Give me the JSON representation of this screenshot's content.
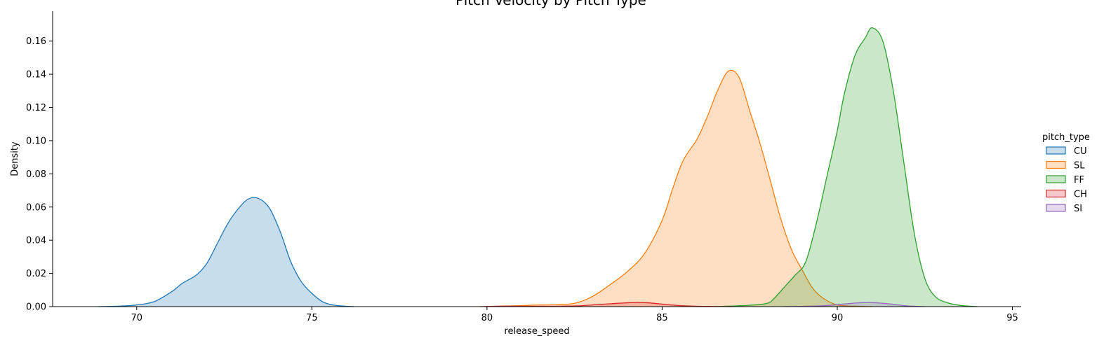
{
  "chart_data": {
    "type": "area",
    "title": "Pitch Velocity by Pitch Type",
    "xlabel": "release_speed",
    "ylabel": "Density",
    "xlim": [
      67.6,
      95.25
    ],
    "ylim": [
      0,
      0.178
    ],
    "x_ticks": [
      70,
      75,
      80,
      85,
      90,
      95
    ],
    "x_tick_labels": [
      "70",
      "75",
      "80",
      "85",
      "90",
      "95"
    ],
    "y_ticks": [
      0,
      0.02,
      0.04,
      0.06,
      0.08,
      0.1,
      0.12,
      0.14,
      0.16
    ],
    "y_tick_labels": [
      "0.00",
      "0.02",
      "0.04",
      "0.06",
      "0.08",
      "0.10",
      "0.12",
      "0.14",
      "0.16"
    ],
    "grid": false,
    "legend": {
      "title": "pitch_type",
      "position": "right"
    },
    "series": [
      {
        "name": "CU",
        "color": "#1f77b4",
        "x": [
          68.9,
          69.5,
          70.0,
          70.5,
          71.0,
          71.3,
          71.7,
          72.0,
          72.3,
          72.6,
          72.9,
          73.2,
          73.5,
          73.8,
          74.1,
          74.4,
          74.7,
          75.0,
          75.3,
          75.6,
          76.0,
          76.2
        ],
        "y": [
          0.0,
          0.0003,
          0.001,
          0.003,
          0.009,
          0.014,
          0.019,
          0.026,
          0.038,
          0.05,
          0.059,
          0.065,
          0.065,
          0.059,
          0.045,
          0.027,
          0.015,
          0.008,
          0.003,
          0.001,
          0.0002,
          0.0
        ]
      },
      {
        "name": "SL",
        "color": "#ff7f0e",
        "x": [
          80.0,
          80.5,
          81.0,
          81.5,
          82.0,
          82.5,
          83.0,
          83.5,
          84.0,
          84.5,
          85.0,
          85.3,
          85.6,
          86.0,
          86.3,
          86.6,
          86.9,
          87.2,
          87.5,
          87.8,
          88.1,
          88.4,
          88.7,
          89.0,
          89.3,
          89.6,
          90.0,
          90.5,
          91.0
        ],
        "y": [
          0.0,
          0.0003,
          0.0006,
          0.001,
          0.0012,
          0.002,
          0.006,
          0.013,
          0.021,
          0.032,
          0.052,
          0.071,
          0.088,
          0.101,
          0.115,
          0.131,
          0.142,
          0.138,
          0.118,
          0.098,
          0.075,
          0.052,
          0.034,
          0.022,
          0.011,
          0.005,
          0.001,
          0.0003,
          0.0
        ]
      },
      {
        "name": "FF",
        "color": "#2ca02c",
        "x": [
          86.5,
          87.5,
          88.0,
          88.2,
          88.5,
          88.8,
          89.1,
          89.4,
          89.7,
          90.0,
          90.2,
          90.5,
          90.8,
          91.0,
          91.3,
          91.6,
          91.9,
          92.2,
          92.5,
          92.8,
          93.2,
          93.6,
          94.0
        ],
        "y": [
          0.0,
          0.0008,
          0.002,
          0.005,
          0.012,
          0.019,
          0.027,
          0.05,
          0.078,
          0.106,
          0.128,
          0.151,
          0.162,
          0.168,
          0.16,
          0.13,
          0.087,
          0.044,
          0.017,
          0.006,
          0.002,
          0.0005,
          0.0
        ]
      },
      {
        "name": "CH",
        "color": "#d62728",
        "x": [
          79.8,
          80.5,
          81.5,
          82.5,
          83.0,
          83.5,
          84.0,
          84.3,
          84.6,
          85.0,
          85.5,
          86.0,
          86.5,
          87.0
        ],
        "y": [
          0.0,
          0.0003,
          0.0002,
          0.0004,
          0.001,
          0.0017,
          0.0023,
          0.0025,
          0.0023,
          0.0015,
          0.0006,
          0.0002,
          0.0001,
          0.0
        ]
      },
      {
        "name": "SI",
        "color": "#9467bd",
        "x": [
          88.5,
          89.5,
          90.0,
          90.5,
          91.0,
          91.5,
          92.0,
          92.5
        ],
        "y": [
          0.0,
          0.0004,
          0.0012,
          0.0021,
          0.0024,
          0.0016,
          0.0004,
          0.0
        ]
      }
    ]
  }
}
